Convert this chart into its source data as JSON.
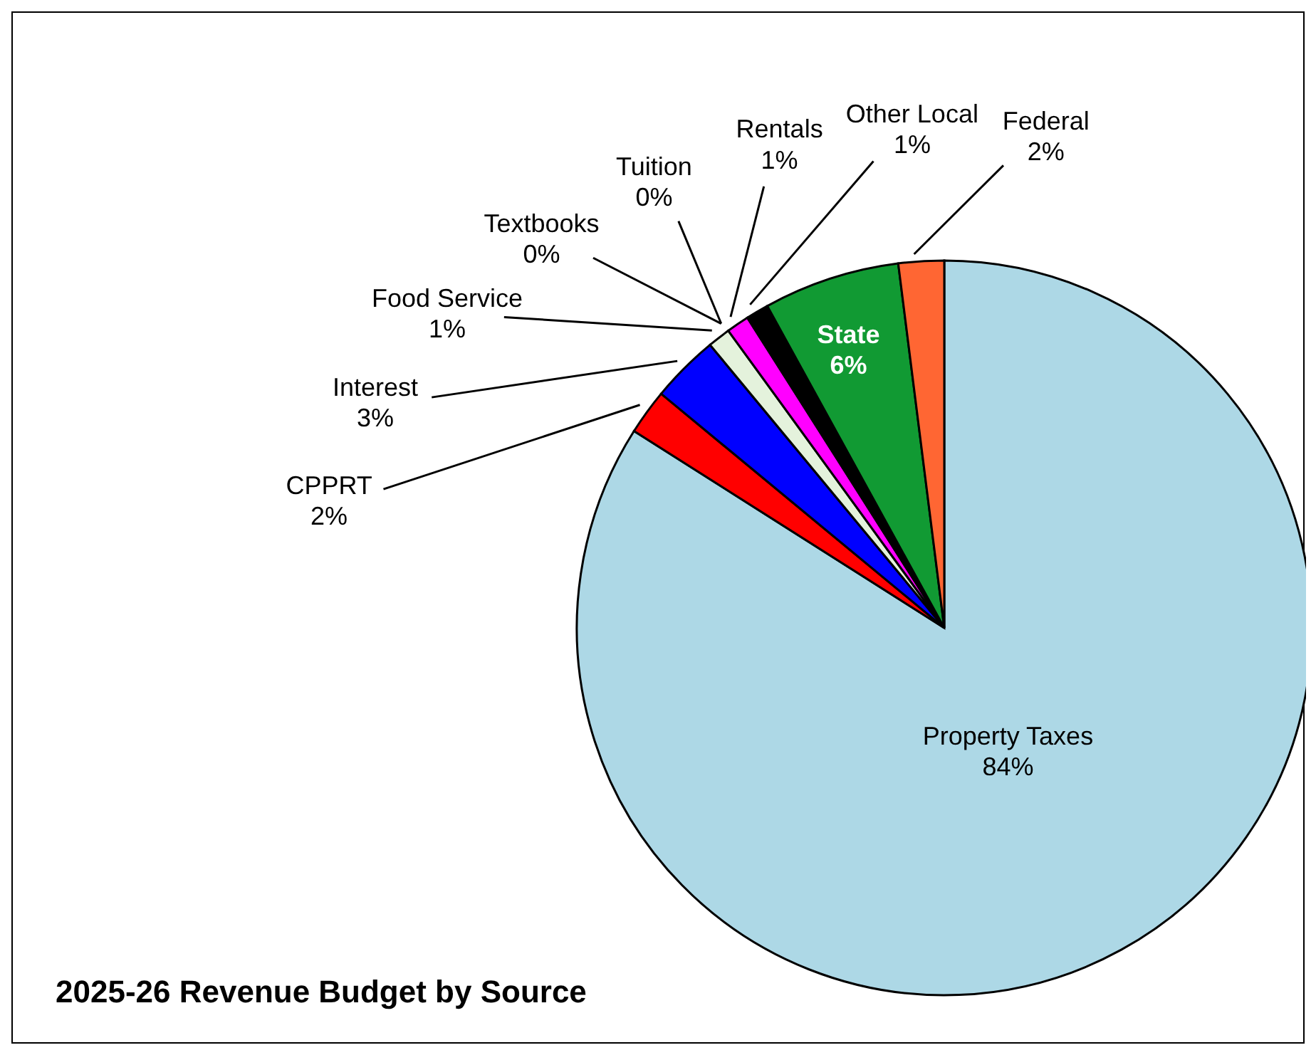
{
  "chart_data": {
    "type": "pie",
    "title": "2025-26 Revenue Budget by Source",
    "categories": [
      "Property Taxes",
      "CPPRT",
      "Interest",
      "Food Service",
      "Textbooks",
      "Tuition",
      "Rentals",
      "Other Local",
      "State",
      "Federal"
    ],
    "values": [
      84,
      2,
      3,
      1,
      0,
      0,
      1,
      1,
      6,
      2
    ],
    "colors": [
      "#add8e6",
      "#ff0000",
      "#0000ff",
      "#e4f2dc",
      "#ffff00",
      "#00ffff",
      "#ff00ff",
      "#000000",
      "#119a33",
      "#ff6633"
    ],
    "value_labels": [
      "84%",
      "2%",
      "3%",
      "1%",
      "0%",
      "0%",
      "1%",
      "1%",
      "6%",
      "2%"
    ],
    "legend": false
  }
}
